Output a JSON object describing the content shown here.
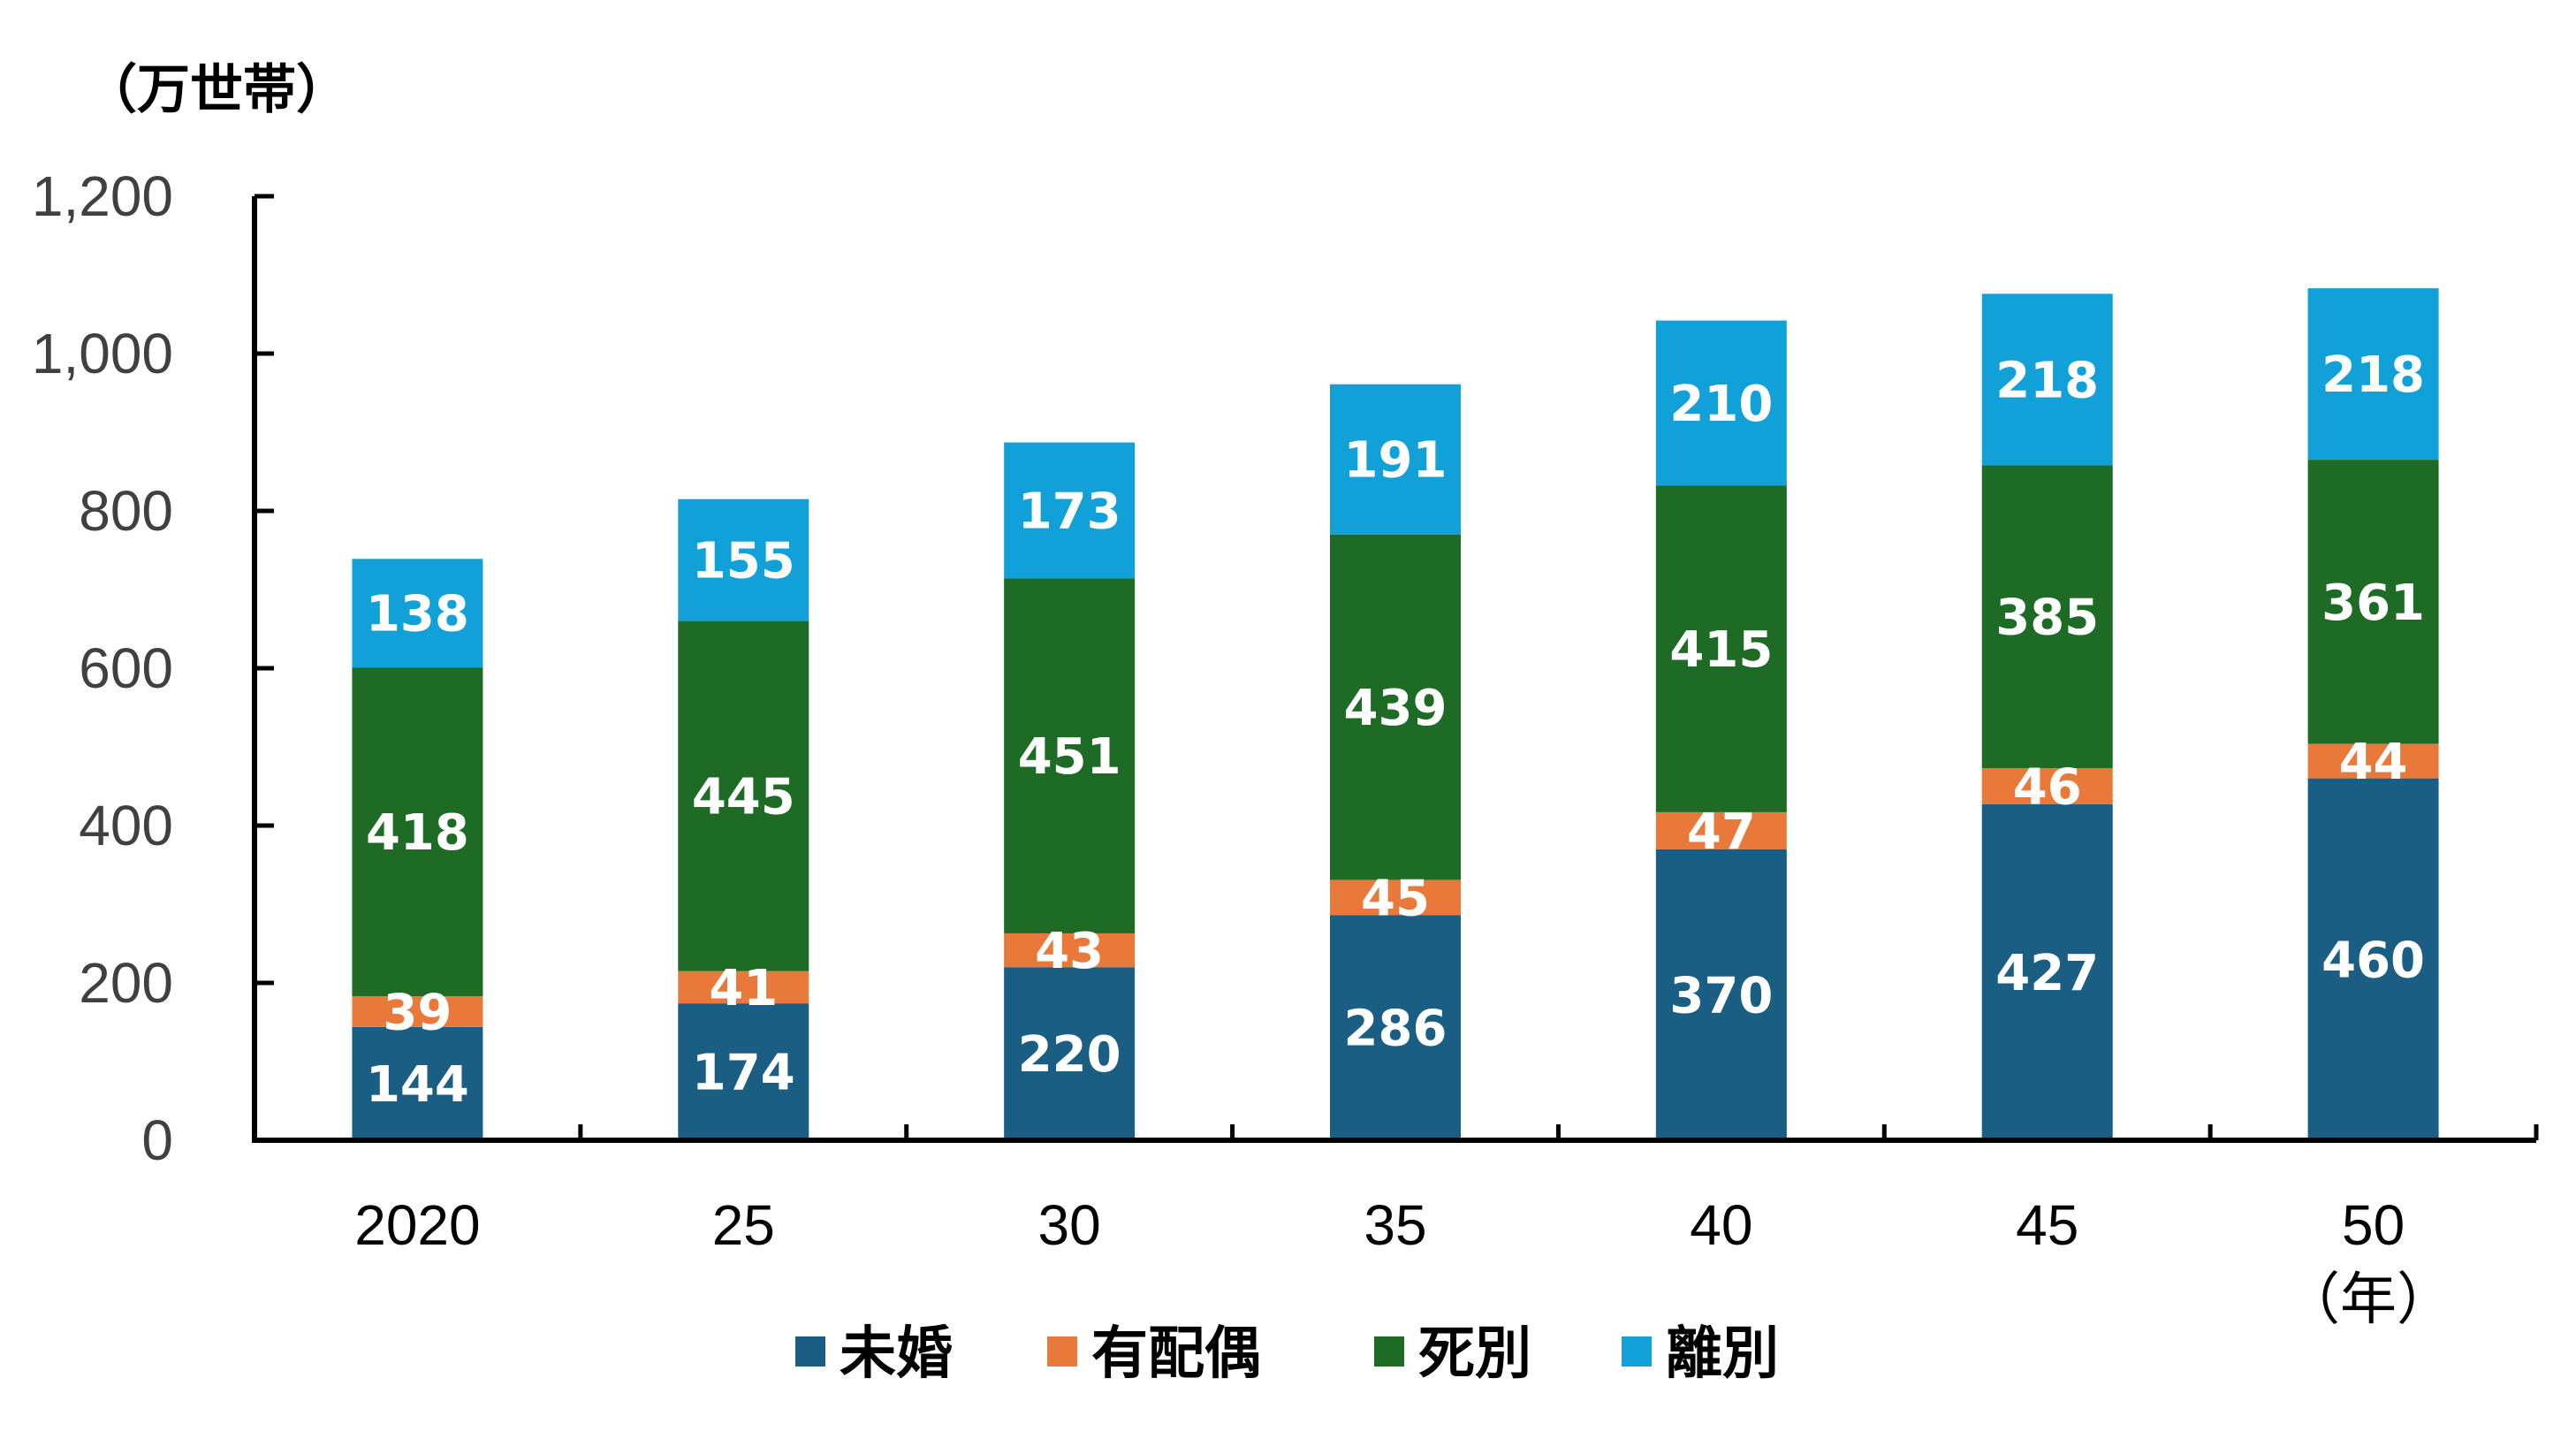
{
  "chart_data": {
    "type": "bar",
    "stacked": true,
    "unit_label": "（万世帯）",
    "x_unit_label": "（年）",
    "categories": [
      "2020",
      "25",
      "30",
      "35",
      "40",
      "45",
      "50"
    ],
    "series": [
      {
        "name": "未婚",
        "color": "#1a5e84",
        "values": [
          144,
          174,
          220,
          286,
          370,
          427,
          460
        ]
      },
      {
        "name": "有配偶",
        "color": "#e8793a",
        "values": [
          39,
          41,
          43,
          45,
          47,
          46,
          44
        ]
      },
      {
        "name": "死別",
        "color": "#1d6b24",
        "values": [
          418,
          445,
          451,
          439,
          415,
          385,
          361
        ]
      },
      {
        "name": "離別",
        "color": "#12a0d8",
        "values": [
          138,
          155,
          173,
          191,
          210,
          218,
          218
        ]
      }
    ],
    "yticks": [
      "0",
      "200",
      "400",
      "600",
      "800",
      "1,000",
      "1,200"
    ],
    "ylim": [
      0,
      1200
    ],
    "legend": "bottom",
    "grid": false
  }
}
